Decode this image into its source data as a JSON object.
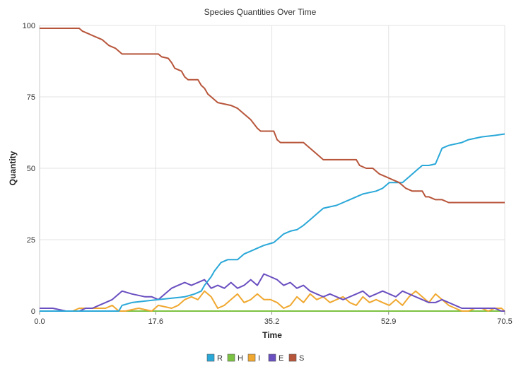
{
  "chart_data": {
    "type": "line",
    "title": "Species Quantities Over Time",
    "xlabel": "Time",
    "ylabel": "Quantity",
    "xlim": [
      0,
      70.5
    ],
    "ylim": [
      0,
      100
    ],
    "x_ticks": [
      "0.0",
      "17.6",
      "35.2",
      "52.9",
      "70.5"
    ],
    "y_ticks": [
      "0",
      "25",
      "50",
      "75",
      "100"
    ],
    "grid": true,
    "legend_position": "bottom",
    "series": [
      {
        "name": "R",
        "color": "#2aa8d8",
        "points": [
          [
            0,
            0
          ],
          [
            12,
            0
          ],
          [
            12.5,
            2
          ],
          [
            14,
            3
          ],
          [
            18,
            4
          ],
          [
            22,
            5
          ],
          [
            23.5,
            6
          ],
          [
            24.5,
            7
          ],
          [
            25,
            9
          ],
          [
            26,
            12
          ],
          [
            26.5,
            14
          ],
          [
            27.5,
            17
          ],
          [
            28.5,
            18
          ],
          [
            30,
            18
          ],
          [
            31,
            20
          ],
          [
            32,
            21
          ],
          [
            33,
            22
          ],
          [
            34,
            23
          ],
          [
            35.5,
            24
          ],
          [
            36,
            25
          ],
          [
            37,
            27
          ],
          [
            38,
            28
          ],
          [
            39,
            28.5
          ],
          [
            40,
            30
          ],
          [
            41,
            32
          ],
          [
            42,
            34
          ],
          [
            43,
            36
          ],
          [
            44,
            36.5
          ],
          [
            45,
            37
          ],
          [
            46,
            38
          ],
          [
            47,
            39
          ],
          [
            48,
            40
          ],
          [
            49,
            41
          ],
          [
            50,
            41.5
          ],
          [
            51,
            42
          ],
          [
            52,
            43
          ],
          [
            53,
            45
          ],
          [
            55,
            45
          ],
          [
            56,
            47
          ],
          [
            57,
            49
          ],
          [
            58,
            51
          ],
          [
            59,
            51
          ],
          [
            60,
            51.5
          ],
          [
            61,
            57
          ],
          [
            62,
            58
          ],
          [
            64,
            59
          ],
          [
            65,
            60
          ],
          [
            67,
            61
          ],
          [
            69,
            61.5
          ],
          [
            70.5,
            62
          ]
        ]
      },
      {
        "name": "H",
        "color": "#7cc242",
        "points": [
          [
            0,
            0
          ],
          [
            70.5,
            0
          ]
        ]
      },
      {
        "name": "I",
        "color": "#f0a830",
        "points": [
          [
            0,
            0
          ],
          [
            5,
            0
          ],
          [
            6,
            1
          ],
          [
            8,
            1
          ],
          [
            10,
            1
          ],
          [
            11,
            2
          ],
          [
            12,
            0
          ],
          [
            13,
            0
          ],
          [
            15,
            1
          ],
          [
            17,
            0
          ],
          [
            18,
            2
          ],
          [
            20,
            1
          ],
          [
            21,
            2
          ],
          [
            22,
            4
          ],
          [
            23,
            5
          ],
          [
            24,
            4
          ],
          [
            25,
            7
          ],
          [
            26,
            5
          ],
          [
            27,
            1
          ],
          [
            28,
            2
          ],
          [
            29,
            4
          ],
          [
            30,
            6
          ],
          [
            31,
            3
          ],
          [
            32,
            4
          ],
          [
            33,
            6
          ],
          [
            34,
            4
          ],
          [
            35,
            4
          ],
          [
            36,
            3
          ],
          [
            37,
            1
          ],
          [
            38,
            2
          ],
          [
            39,
            5
          ],
          [
            40,
            3
          ],
          [
            41,
            6
          ],
          [
            42,
            4
          ],
          [
            43,
            5
          ],
          [
            44,
            3
          ],
          [
            45,
            4
          ],
          [
            46,
            5
          ],
          [
            47,
            3
          ],
          [
            48,
            2
          ],
          [
            49,
            5
          ],
          [
            50,
            3
          ],
          [
            51,
            4
          ],
          [
            52,
            3
          ],
          [
            53,
            2
          ],
          [
            54,
            4
          ],
          [
            55,
            2
          ],
          [
            56,
            5
          ],
          [
            57,
            7
          ],
          [
            58,
            5
          ],
          [
            59,
            3
          ],
          [
            60,
            6
          ],
          [
            61,
            4
          ],
          [
            62,
            2
          ],
          [
            63,
            1
          ],
          [
            64,
            0
          ],
          [
            65,
            0
          ],
          [
            66,
            1
          ],
          [
            67,
            1
          ],
          [
            68,
            0
          ],
          [
            69,
            1
          ],
          [
            70,
            1
          ],
          [
            70.5,
            0
          ]
        ]
      },
      {
        "name": "E",
        "color": "#6a4fc0",
        "points": [
          [
            0,
            1
          ],
          [
            2,
            1
          ],
          [
            4,
            0
          ],
          [
            6,
            0
          ],
          [
            7,
            1
          ],
          [
            8,
            1
          ],
          [
            9,
            2
          ],
          [
            10,
            3
          ],
          [
            11,
            4
          ],
          [
            12,
            6
          ],
          [
            12.5,
            7
          ],
          [
            14,
            6
          ],
          [
            16,
            5
          ],
          [
            17,
            5
          ],
          [
            18,
            4
          ],
          [
            19,
            6
          ],
          [
            20,
            8
          ],
          [
            21,
            9
          ],
          [
            22,
            10
          ],
          [
            23,
            9
          ],
          [
            24,
            10
          ],
          [
            25,
            11
          ],
          [
            26,
            8
          ],
          [
            27,
            9
          ],
          [
            28,
            8
          ],
          [
            29,
            10
          ],
          [
            30,
            8
          ],
          [
            31,
            9
          ],
          [
            32,
            11
          ],
          [
            33,
            9
          ],
          [
            34,
            13
          ],
          [
            35,
            12
          ],
          [
            36,
            11
          ],
          [
            37,
            9
          ],
          [
            38,
            10
          ],
          [
            39,
            8
          ],
          [
            40,
            9
          ],
          [
            41,
            7
          ],
          [
            42,
            6
          ],
          [
            43,
            5
          ],
          [
            44,
            6
          ],
          [
            45,
            5
          ],
          [
            46,
            4
          ],
          [
            47,
            5
          ],
          [
            48,
            6
          ],
          [
            49,
            7
          ],
          [
            50,
            5
          ],
          [
            51,
            6
          ],
          [
            52,
            7
          ],
          [
            53,
            6
          ],
          [
            54,
            5
          ],
          [
            55,
            7
          ],
          [
            56,
            6
          ],
          [
            57,
            5
          ],
          [
            58,
            4
          ],
          [
            59,
            3
          ],
          [
            60,
            3
          ],
          [
            61,
            4
          ],
          [
            62,
            3
          ],
          [
            63,
            2
          ],
          [
            64,
            1
          ],
          [
            65,
            1
          ],
          [
            66,
            1
          ],
          [
            68,
            1
          ],
          [
            69,
            1
          ],
          [
            70,
            0
          ],
          [
            70.5,
            0
          ]
        ]
      },
      {
        "name": "S",
        "color": "#b7553a",
        "points": [
          [
            0,
            99
          ],
          [
            6,
            99
          ],
          [
            6.5,
            98
          ],
          [
            7.5,
            97
          ],
          [
            8.5,
            96
          ],
          [
            9.5,
            95
          ],
          [
            10.5,
            93
          ],
          [
            11.5,
            92
          ],
          [
            12.5,
            90
          ],
          [
            18,
            90
          ],
          [
            18.5,
            89
          ],
          [
            19.5,
            88.5
          ],
          [
            20,
            87
          ],
          [
            20.5,
            85
          ],
          [
            21.5,
            84
          ],
          [
            22,
            82
          ],
          [
            22.5,
            81
          ],
          [
            24,
            81
          ],
          [
            24.5,
            79
          ],
          [
            25,
            78
          ],
          [
            25.5,
            76
          ],
          [
            26,
            75
          ],
          [
            26.5,
            74
          ],
          [
            27,
            73
          ],
          [
            29,
            72
          ],
          [
            30,
            71
          ],
          [
            31,
            69
          ],
          [
            32,
            67
          ],
          [
            33,
            64
          ],
          [
            33.5,
            63
          ],
          [
            35.5,
            63
          ],
          [
            36,
            60
          ],
          [
            36.5,
            59
          ],
          [
            40,
            59
          ],
          [
            40.5,
            58
          ],
          [
            41,
            57
          ],
          [
            42,
            55
          ],
          [
            43,
            53
          ],
          [
            48,
            53
          ],
          [
            48.5,
            51
          ],
          [
            49.5,
            50
          ],
          [
            50.5,
            50
          ],
          [
            51.5,
            48
          ],
          [
            52.5,
            47
          ],
          [
            53.5,
            46
          ],
          [
            54.5,
            45
          ],
          [
            55.5,
            43
          ],
          [
            56.5,
            42
          ],
          [
            58,
            42
          ],
          [
            58.5,
            40
          ],
          [
            59,
            40
          ],
          [
            60,
            39
          ],
          [
            61,
            39
          ],
          [
            62,
            38
          ],
          [
            70.5,
            38
          ]
        ]
      }
    ]
  }
}
